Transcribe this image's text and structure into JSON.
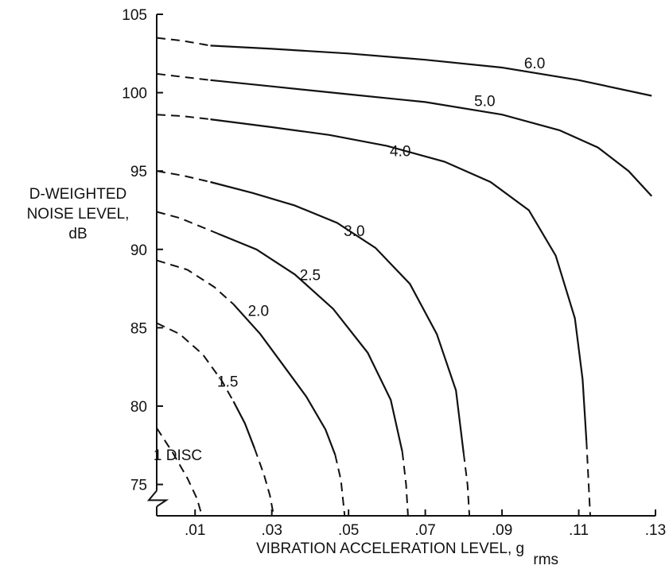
{
  "chart_data": {
    "type": "line",
    "title": "",
    "xlabel": "VIBRATION ACCELERATION LEVEL, g",
    "xlabel_subscript": "rms",
    "ylabel": [
      "D-WEIGHTED",
      "NOISE LEVEL,",
      "dB"
    ],
    "xlim": [
      0,
      0.13
    ],
    "ylim": [
      73,
      105
    ],
    "y_axis_break": true,
    "grid": false,
    "x_ticks": [
      0.01,
      0.03,
      0.05,
      0.07,
      0.09,
      0.11,
      0.13
    ],
    "x_tick_labels": [
      ".01",
      ".03",
      ".05",
      ".07",
      ".09",
      ".11",
      ".13"
    ],
    "y_ticks": [
      75,
      80,
      85,
      90,
      95,
      100,
      105
    ],
    "y_tick_labels": [
      "75",
      "80",
      "85",
      "90",
      "95",
      "100",
      "105"
    ],
    "series": [
      {
        "name": "1 DISC",
        "label_at": [
          0.0055,
          76.9
        ],
        "dashed": [
          [
            0,
            78.6
          ],
          [
            0.004,
            77.1
          ],
          [
            0.008,
            75.4
          ],
          [
            0.0105,
            74.1
          ],
          [
            0.0118,
            73
          ]
        ],
        "solid": []
      },
      {
        "name": "1.5",
        "label_at": [
          0.0185,
          81.6
        ],
        "dashed": [
          [
            0,
            85.3
          ],
          [
            0.006,
            84.6
          ],
          [
            0.012,
            83.3
          ],
          [
            0.017,
            81.6
          ],
          [
            0.02,
            80.3
          ]
        ],
        "solid": [
          [
            0.02,
            80.3
          ],
          [
            0.023,
            78.9
          ],
          [
            0.0255,
            77.3
          ]
        ],
        "dashed_end": [
          [
            0.0255,
            77.3
          ],
          [
            0.028,
            75.6
          ],
          [
            0.0295,
            74.3
          ],
          [
            0.0305,
            73
          ]
        ]
      },
      {
        "name": "2.0",
        "label_at": [
          0.0265,
          86.1
        ],
        "dashed": [
          [
            0,
            89.3
          ],
          [
            0.008,
            88.7
          ],
          [
            0.015,
            87.6
          ],
          [
            0.02,
            86.5
          ]
        ],
        "solid": [
          [
            0.02,
            86.5
          ],
          [
            0.027,
            84.6
          ],
          [
            0.033,
            82.6
          ],
          [
            0.039,
            80.6
          ],
          [
            0.044,
            78.5
          ],
          [
            0.0465,
            76.9
          ]
        ],
        "dashed_end": [
          [
            0.0465,
            76.9
          ],
          [
            0.048,
            75.3
          ],
          [
            0.049,
            73
          ]
        ]
      },
      {
        "name": "2.5",
        "label_at": [
          0.04,
          88.4
        ],
        "dashed": [
          [
            0,
            92.4
          ],
          [
            0.006,
            92
          ],
          [
            0.011,
            91.5
          ],
          [
            0.016,
            91
          ]
        ],
        "solid": [
          [
            0.016,
            91
          ],
          [
            0.026,
            90
          ],
          [
            0.036,
            88.4
          ],
          [
            0.046,
            86.2
          ],
          [
            0.055,
            83.4
          ],
          [
            0.061,
            80.4
          ],
          [
            0.064,
            77.1
          ]
        ],
        "dashed_end": [
          [
            0.064,
            77.1
          ],
          [
            0.065,
            75
          ],
          [
            0.0655,
            73
          ]
        ]
      },
      {
        "name": "3.0",
        "label_at": [
          0.0515,
          91.2
        ],
        "dashed": [
          [
            0,
            95
          ],
          [
            0.007,
            94.7
          ],
          [
            0.014,
            94.3
          ]
        ],
        "solid": [
          [
            0.014,
            94.3
          ],
          [
            0.025,
            93.6
          ],
          [
            0.036,
            92.8
          ],
          [
            0.047,
            91.7
          ],
          [
            0.057,
            90.1
          ],
          [
            0.066,
            87.8
          ],
          [
            0.073,
            84.6
          ],
          [
            0.078,
            81
          ],
          [
            0.08,
            77
          ]
        ],
        "dashed_end": [
          [
            0.08,
            77
          ],
          [
            0.081,
            75
          ],
          [
            0.0815,
            73
          ]
        ]
      },
      {
        "name": "4.0",
        "label_at": [
          0.0635,
          96.3
        ],
        "dashed": [
          [
            0,
            98.6
          ],
          [
            0.007,
            98.5
          ],
          [
            0.014,
            98.3
          ]
        ],
        "solid": [
          [
            0.014,
            98.3
          ],
          [
            0.03,
            97.8
          ],
          [
            0.045,
            97.3
          ],
          [
            0.06,
            96.6
          ],
          [
            0.075,
            95.6
          ],
          [
            0.087,
            94.3
          ],
          [
            0.097,
            92.5
          ],
          [
            0.104,
            89.6
          ],
          [
            0.109,
            85.6
          ],
          [
            0.111,
            81.7
          ],
          [
            0.112,
            77.8
          ]
        ],
        "dashed_end": [
          [
            0.112,
            77.8
          ],
          [
            0.1125,
            75.4
          ],
          [
            0.113,
            73
          ]
        ]
      },
      {
        "name": "5.0",
        "label_at": [
          0.0855,
          99.5
        ],
        "dashed": [
          [
            0,
            101.2
          ],
          [
            0.007,
            101
          ],
          [
            0.014,
            100.8
          ]
        ],
        "solid": [
          [
            0.014,
            100.8
          ],
          [
            0.03,
            100.4
          ],
          [
            0.05,
            99.9
          ],
          [
            0.07,
            99.4
          ],
          [
            0.09,
            98.6
          ],
          [
            0.105,
            97.6
          ],
          [
            0.115,
            96.5
          ],
          [
            0.123,
            95
          ],
          [
            0.129,
            93.4
          ]
        ],
        "dashed_end": []
      },
      {
        "name": "6.0",
        "label_at": [
          0.0985,
          101.9
        ],
        "dashed": [
          [
            0,
            103.5
          ],
          [
            0.007,
            103.3
          ],
          [
            0.014,
            103
          ]
        ],
        "solid": [
          [
            0.014,
            103
          ],
          [
            0.03,
            102.8
          ],
          [
            0.05,
            102.5
          ],
          [
            0.07,
            102.1
          ],
          [
            0.09,
            101.6
          ],
          [
            0.11,
            100.8
          ],
          [
            0.129,
            99.8
          ]
        ],
        "dashed_end": []
      }
    ]
  }
}
